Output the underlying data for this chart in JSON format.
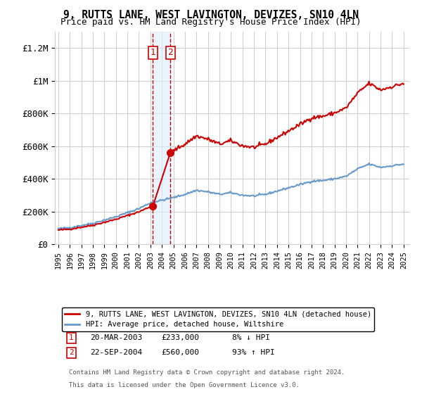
{
  "title1": "9, RUTTS LANE, WEST LAVINGTON, DEVIZES, SN10 4LN",
  "title2": "Price paid vs. HM Land Registry's House Price Index (HPI)",
  "legend_line1": "9, RUTTS LANE, WEST LAVINGTON, DEVIZES, SN10 4LN (detached house)",
  "legend_line2": "HPI: Average price, detached house, Wiltshire",
  "transaction1_label": "1",
  "transaction1_date": "20-MAR-2003",
  "transaction1_price": "£233,000",
  "transaction1_hpi": "8% ↓ HPI",
  "transaction2_label": "2",
  "transaction2_date": "22-SEP-2004",
  "transaction2_price": "£560,000",
  "transaction2_hpi": "93% ↑ HPI",
  "footnote1": "Contains HM Land Registry data © Crown copyright and database right 2024.",
  "footnote2": "This data is licensed under the Open Government Licence v3.0.",
  "hpi_color": "#6699cc",
  "property_color": "#cc0000",
  "marker_color": "#cc0000",
  "vline_color": "#cc0000",
  "background_color": "#ffffff",
  "grid_color": "#cccccc",
  "ylim": [
    0,
    1300000
  ],
  "xlim_start": 1995.0,
  "xlim_end": 2025.5,
  "transaction1_year": 2003.22,
  "transaction1_value": 233000,
  "transaction2_year": 2004.73,
  "transaction2_value": 560000
}
